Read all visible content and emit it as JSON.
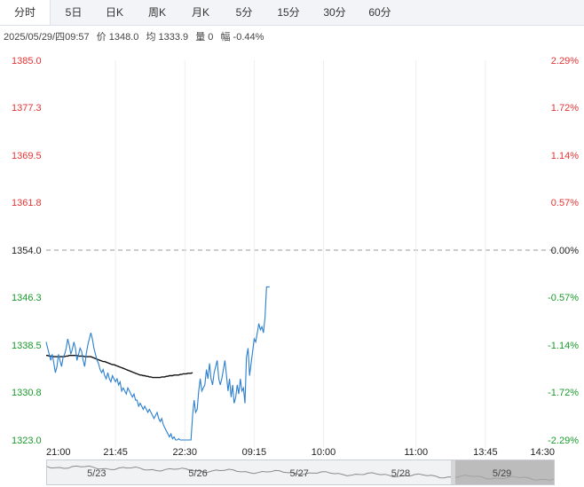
{
  "tabs": [
    {
      "label": "分时",
      "active": true
    },
    {
      "label": "5日",
      "active": false
    },
    {
      "label": "日K",
      "active": false
    },
    {
      "label": "周K",
      "active": false
    },
    {
      "label": "月K",
      "active": false
    },
    {
      "label": "5分",
      "active": false
    },
    {
      "label": "15分",
      "active": false
    },
    {
      "label": "30分",
      "active": false
    },
    {
      "label": "60分",
      "active": false
    }
  ],
  "info": {
    "datetime": "2025/05/29/四09:57",
    "price": "价 1348.0",
    "avg": "均 1333.9",
    "volume": "量 0",
    "change": "幅 -0.44%"
  },
  "colors": {
    "up": "#e63434",
    "down": "#1a9a2b",
    "neutral": "#222222",
    "price_line": "#2a7fcf",
    "avg_line": "#111111"
  },
  "chart_data": {
    "type": "line",
    "ylim": [
      1323.0,
      1385.0
    ],
    "base_price": 1354.0,
    "y_ticks": [
      {
        "price": "1385.0",
        "pct": "2.29%",
        "value": 1385.0
      },
      {
        "price": "1377.3",
        "pct": "1.72%",
        "value": 1377.3
      },
      {
        "price": "1369.5",
        "pct": "1.14%",
        "value": 1369.5
      },
      {
        "price": "1361.8",
        "pct": "0.57%",
        "value": 1361.8
      },
      {
        "price": "1354.0",
        "pct": "0.00%",
        "value": 1354.0
      },
      {
        "price": "1346.3",
        "pct": "-0.57%",
        "value": 1346.3
      },
      {
        "price": "1338.5",
        "pct": "-1.14%",
        "value": 1338.5
      },
      {
        "price": "1330.8",
        "pct": "-1.72%",
        "value": 1330.8
      },
      {
        "price": "1323.0",
        "pct": "-2.29%",
        "value": 1323.0
      }
    ],
    "x_ticks": [
      "21:00",
      "21:45",
      "22:30",
      "09:15",
      "10:00",
      "11:00",
      "13:45",
      "14:30"
    ],
    "x_tick_index": [
      0,
      45,
      90,
      135,
      180,
      240,
      285,
      330
    ],
    "x_max_index": 330,
    "series": [
      {
        "kind": "price",
        "values": [
          1339.0,
          1338.0,
          1337.0,
          1336.0,
          1337.0,
          1335.5,
          1334.0,
          1335.0,
          1337.0,
          1336.0,
          1335.0,
          1336.5,
          1337.0,
          1338.0,
          1339.5,
          1338.5,
          1337.0,
          1337.8,
          1339.0,
          1338.0,
          1336.0,
          1337.0,
          1338.0,
          1337.5,
          1336.0,
          1335.0,
          1337.0,
          1338.5,
          1339.5,
          1340.5,
          1339.5,
          1338.0,
          1337.0,
          1336.0,
          1335.5,
          1334.5,
          1334.0,
          1334.5,
          1333.5,
          1333.0,
          1334.0,
          1333.0,
          1332.5,
          1333.5,
          1333.0,
          1332.5,
          1333.0,
          1332.0,
          1332.5,
          1331.0,
          1331.5,
          1331.0,
          1330.5,
          1331.5,
          1331.0,
          1330.5,
          1330.0,
          1330.5,
          1329.5,
          1329.5,
          1328.5,
          1329.0,
          1328.5,
          1328.0,
          1328.5,
          1328.0,
          1327.5,
          1328.0,
          1327.5,
          1327.0,
          1326.5,
          1327.0,
          1327.5,
          1326.5,
          1326.0,
          1326.5,
          1325.5,
          1325.0,
          1324.5,
          1324.0,
          1323.5,
          1324.0,
          1323.2,
          1323.5,
          1323.0,
          1323.0,
          1323.2,
          1323.0,
          1323.0,
          1323.0,
          1323.0,
          1323.0,
          1323.0,
          1323.0,
          1323.0,
          1327.0,
          1329.5,
          1327.5,
          1328.0,
          1331.0,
          1333.0,
          1331.0,
          1331.5,
          1332.0,
          1334.5,
          1333.0,
          1335.5,
          1333.0,
          1332.0,
          1334.0,
          1335.0,
          1336.0,
          1333.0,
          1332.0,
          1333.0,
          1334.5,
          1336.0,
          1333.5,
          1331.0,
          1333.0,
          1330.0,
          1332.0,
          1329.0,
          1330.0,
          1332.0,
          1330.5,
          1333.0,
          1331.0,
          1331.5,
          1329.0,
          1336.5,
          1338.0,
          1333.5,
          1335.5,
          1337.5,
          1339.5,
          1339.0,
          1340.5,
          1342.0,
          1341.0,
          1341.5,
          1340.5,
          1343.0,
          1348.0,
          1348.0,
          1348.0
        ]
      },
      {
        "kind": "average",
        "values": [
          1336.8,
          1336.8,
          1336.7,
          1336.7,
          1336.7,
          1336.6,
          1336.6,
          1336.6,
          1336.6,
          1336.6,
          1336.6,
          1336.6,
          1336.6,
          1336.7,
          1336.7,
          1336.8,
          1336.8,
          1336.8,
          1336.8,
          1336.8,
          1336.8,
          1336.7,
          1336.7,
          1336.7,
          1336.7,
          1336.6,
          1336.6,
          1336.6,
          1336.6,
          1336.6,
          1336.5,
          1336.4,
          1336.3,
          1336.2,
          1336.1,
          1336.0,
          1335.9,
          1335.8,
          1335.8,
          1335.7,
          1335.6,
          1335.5,
          1335.4,
          1335.3,
          1335.3,
          1335.2,
          1335.1,
          1335.0,
          1334.9,
          1334.8,
          1334.7,
          1334.6,
          1334.5,
          1334.4,
          1334.3,
          1334.2,
          1334.1,
          1334.0,
          1333.9,
          1333.8,
          1333.7,
          1333.6,
          1333.6,
          1333.5,
          1333.5,
          1333.4,
          1333.4,
          1333.3,
          1333.3,
          1333.2,
          1333.2,
          1333.2,
          1333.2,
          1333.2,
          1333.2,
          1333.3,
          1333.3,
          1333.3,
          1333.4,
          1333.4,
          1333.5,
          1333.5,
          1333.5,
          1333.6,
          1333.6,
          1333.6,
          1333.6,
          1333.7,
          1333.7,
          1333.8,
          1333.8,
          1333.8,
          1333.9,
          1333.9,
          1333.9,
          1334.0
        ]
      }
    ]
  },
  "navigator": {
    "dates": [
      "5/23",
      "5/26",
      "5/27",
      "5/28",
      "5/29"
    ],
    "selected_index": 4
  }
}
